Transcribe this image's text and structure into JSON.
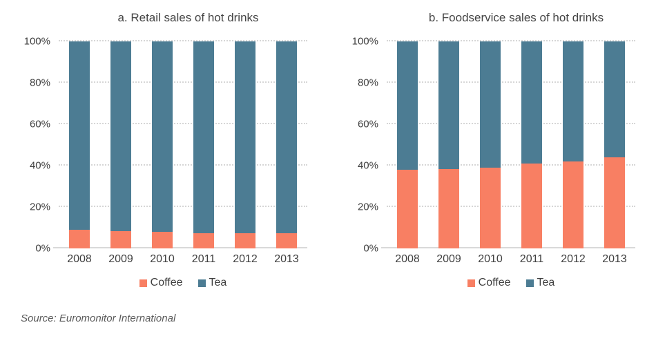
{
  "source": "Source: Euromonitor International",
  "colors": {
    "coffee": "#F87F63",
    "tea": "#4C7C93",
    "gridline": "#D6D6D6",
    "axis_line": "#D9D9D9",
    "text": "#404040",
    "source_text": "#595959"
  },
  "chart_data": [
    {
      "type": "bar",
      "stacked": true,
      "title": "a. Retail sales of hot drinks",
      "categories": [
        "2008",
        "2009",
        "2010",
        "2011",
        "2012",
        "2013"
      ],
      "series": [
        {
          "name": "Coffee",
          "color": "#F87F63",
          "values": [
            9,
            8.5,
            8,
            7.5,
            7.5,
            7.5
          ]
        },
        {
          "name": "Tea",
          "color": "#4C7C93",
          "values": [
            91,
            91.5,
            92,
            92.5,
            92.5,
            92.5
          ]
        }
      ],
      "ylabel": "",
      "xlabel": "",
      "ylim": [
        0,
        100
      ],
      "yticks": [
        "0%",
        "20%",
        "40%",
        "60%",
        "80%",
        "100%"
      ],
      "grid": "horizontal dotted",
      "legend_position": "bottom"
    },
    {
      "type": "bar",
      "stacked": true,
      "title": "b. Foodservice sales of hot drinks",
      "categories": [
        "2008",
        "2009",
        "2010",
        "2011",
        "2012",
        "2013"
      ],
      "series": [
        {
          "name": "Coffee",
          "color": "#F87F63",
          "values": [
            38,
            38.5,
            39,
            41,
            42,
            44
          ]
        },
        {
          "name": "Tea",
          "color": "#4C7C93",
          "values": [
            62,
            61.5,
            61,
            59,
            58,
            56
          ]
        }
      ],
      "ylabel": "",
      "xlabel": "",
      "ylim": [
        0,
        100
      ],
      "yticks": [
        "0%",
        "20%",
        "40%",
        "60%",
        "80%",
        "100%"
      ],
      "grid": "horizontal dotted",
      "legend_position": "bottom"
    }
  ]
}
